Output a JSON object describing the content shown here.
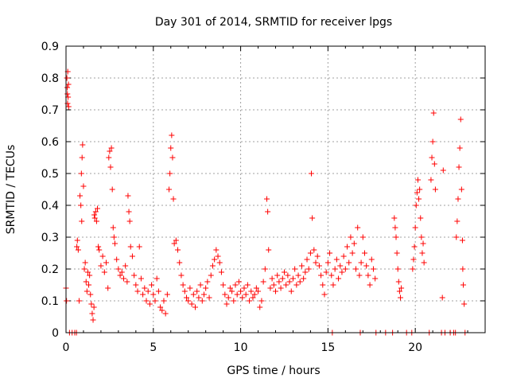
{
  "chart_data": {
    "type": "scatter",
    "title": "Day 301 of 2014, SRMTID for receiver lpgs",
    "xlabel": "GPS time / hours",
    "ylabel": "SRMTID / TECUs",
    "xlim": [
      0,
      24
    ],
    "ylim": [
      0,
      0.9
    ],
    "x_ticks": [
      0,
      5,
      10,
      15,
      20
    ],
    "y_ticks": [
      0,
      0.1,
      0.2,
      0.3,
      0.4,
      0.5,
      0.6,
      0.7,
      0.8,
      0.9
    ],
    "grid": true,
    "legend": "none",
    "marker": "+",
    "colors": {
      "series": "#ff0000",
      "grid": "#a0a0a0",
      "axis": "#000000"
    },
    "series": [
      {
        "name": "SRMTID",
        "points": [
          [
            0.0,
            0.14
          ],
          [
            0.03,
            0.1
          ],
          [
            0.05,
            0.8
          ],
          [
            0.07,
            0.77
          ],
          [
            0.08,
            0.75
          ],
          [
            0.09,
            0.72
          ],
          [
            0.1,
            0.82
          ],
          [
            0.12,
            0.74
          ],
          [
            0.14,
            0.78
          ],
          [
            0.15,
            0.71
          ],
          [
            0.2,
            0.0
          ],
          [
            0.35,
            0.0
          ],
          [
            0.5,
            0.0
          ],
          [
            0.6,
            0.0
          ],
          [
            0.62,
            0.27
          ],
          [
            0.65,
            0.29
          ],
          [
            0.7,
            0.26
          ],
          [
            0.75,
            0.1
          ],
          [
            0.8,
            0.43
          ],
          [
            0.85,
            0.4
          ],
          [
            0.88,
            0.5
          ],
          [
            0.9,
            0.35
          ],
          [
            0.92,
            0.55
          ],
          [
            0.95,
            0.59
          ],
          [
            1.0,
            0.46
          ],
          [
            1.05,
            0.2
          ],
          [
            1.1,
            0.22
          ],
          [
            1.15,
            0.16
          ],
          [
            1.2,
            0.13
          ],
          [
            1.25,
            0.19
          ],
          [
            1.3,
            0.15
          ],
          [
            1.35,
            0.18
          ],
          [
            1.4,
            0.12
          ],
          [
            1.45,
            0.09
          ],
          [
            1.5,
            0.06
          ],
          [
            1.55,
            0.04
          ],
          [
            1.6,
            0.08
          ],
          [
            1.62,
            0.37
          ],
          [
            1.65,
            0.36
          ],
          [
            1.7,
            0.38
          ],
          [
            1.75,
            0.35
          ],
          [
            1.8,
            0.39
          ],
          [
            1.85,
            0.27
          ],
          [
            1.9,
            0.26
          ],
          [
            2.0,
            0.21
          ],
          [
            2.1,
            0.24
          ],
          [
            2.2,
            0.19
          ],
          [
            2.3,
            0.22
          ],
          [
            2.4,
            0.14
          ],
          [
            2.45,
            0.55
          ],
          [
            2.5,
            0.57
          ],
          [
            2.55,
            0.52
          ],
          [
            2.6,
            0.58
          ],
          [
            2.65,
            0.45
          ],
          [
            2.7,
            0.33
          ],
          [
            2.75,
            0.3
          ],
          [
            2.8,
            0.28
          ],
          [
            2.9,
            0.23
          ],
          [
            3.0,
            0.2
          ],
          [
            3.1,
            0.18
          ],
          [
            3.2,
            0.19
          ],
          [
            3.3,
            0.17
          ],
          [
            3.4,
            0.21
          ],
          [
            3.5,
            0.16
          ],
          [
            3.55,
            0.43
          ],
          [
            3.6,
            0.38
          ],
          [
            3.65,
            0.35
          ],
          [
            3.7,
            0.27
          ],
          [
            3.8,
            0.24
          ],
          [
            3.9,
            0.18
          ],
          [
            4.0,
            0.15
          ],
          [
            4.1,
            0.13
          ],
          [
            4.2,
            0.27
          ],
          [
            4.3,
            0.17
          ],
          [
            4.4,
            0.12
          ],
          [
            4.5,
            0.14
          ],
          [
            4.6,
            0.1
          ],
          [
            4.7,
            0.13
          ],
          [
            4.8,
            0.09
          ],
          [
            4.9,
            0.15
          ],
          [
            5.0,
            0.12
          ],
          [
            5.1,
            0.1
          ],
          [
            5.2,
            0.17
          ],
          [
            5.3,
            0.13
          ],
          [
            5.4,
            0.08
          ],
          [
            5.5,
            0.07
          ],
          [
            5.6,
            0.1
          ],
          [
            5.7,
            0.06
          ],
          [
            5.8,
            0.12
          ],
          [
            5.9,
            0.45
          ],
          [
            5.95,
            0.5
          ],
          [
            6.0,
            0.58
          ],
          [
            6.05,
            0.62
          ],
          [
            6.1,
            0.55
          ],
          [
            6.15,
            0.42
          ],
          [
            6.2,
            0.28
          ],
          [
            6.3,
            0.29
          ],
          [
            6.4,
            0.26
          ],
          [
            6.5,
            0.22
          ],
          [
            6.6,
            0.18
          ],
          [
            6.7,
            0.15
          ],
          [
            6.8,
            0.13
          ],
          [
            6.9,
            0.11
          ],
          [
            7.0,
            0.1
          ],
          [
            7.1,
            0.14
          ],
          [
            7.2,
            0.09
          ],
          [
            7.3,
            0.12
          ],
          [
            7.4,
            0.08
          ],
          [
            7.5,
            0.13
          ],
          [
            7.6,
            0.11
          ],
          [
            7.7,
            0.15
          ],
          [
            7.8,
            0.1
          ],
          [
            7.9,
            0.12
          ],
          [
            8.0,
            0.14
          ],
          [
            8.1,
            0.16
          ],
          [
            8.2,
            0.11
          ],
          [
            8.3,
            0.18
          ],
          [
            8.4,
            0.21
          ],
          [
            8.5,
            0.23
          ],
          [
            8.6,
            0.26
          ],
          [
            8.7,
            0.24
          ],
          [
            8.8,
            0.22
          ],
          [
            8.9,
            0.19
          ],
          [
            9.0,
            0.15
          ],
          [
            9.1,
            0.12
          ],
          [
            9.2,
            0.09
          ],
          [
            9.3,
            0.11
          ],
          [
            9.4,
            0.14
          ],
          [
            9.5,
            0.13
          ],
          [
            9.6,
            0.1
          ],
          [
            9.7,
            0.15
          ],
          [
            9.8,
            0.12
          ],
          [
            9.9,
            0.16
          ],
          [
            10.0,
            0.13
          ],
          [
            10.1,
            0.11
          ],
          [
            10.2,
            0.14
          ],
          [
            10.3,
            0.12
          ],
          [
            10.4,
            0.15
          ],
          [
            10.5,
            0.1
          ],
          [
            10.6,
            0.13
          ],
          [
            10.7,
            0.11
          ],
          [
            10.8,
            0.12
          ],
          [
            10.9,
            0.14
          ],
          [
            11.0,
            0.13
          ],
          [
            11.1,
            0.08
          ],
          [
            11.2,
            0.1
          ],
          [
            11.3,
            0.16
          ],
          [
            11.4,
            0.2
          ],
          [
            11.5,
            0.42
          ],
          [
            11.55,
            0.38
          ],
          [
            11.6,
            0.26
          ],
          [
            11.7,
            0.14
          ],
          [
            11.8,
            0.17
          ],
          [
            11.9,
            0.15
          ],
          [
            12.0,
            0.13
          ],
          [
            12.1,
            0.18
          ],
          [
            12.2,
            0.16
          ],
          [
            12.3,
            0.14
          ],
          [
            12.4,
            0.17
          ],
          [
            12.5,
            0.19
          ],
          [
            12.6,
            0.15
          ],
          [
            12.7,
            0.18
          ],
          [
            12.8,
            0.16
          ],
          [
            12.9,
            0.13
          ],
          [
            13.0,
            0.17
          ],
          [
            13.1,
            0.2
          ],
          [
            13.2,
            0.15
          ],
          [
            13.3,
            0.18
          ],
          [
            13.4,
            0.16
          ],
          [
            13.5,
            0.21
          ],
          [
            13.6,
            0.17
          ],
          [
            13.7,
            0.19
          ],
          [
            13.8,
            0.23
          ],
          [
            13.9,
            0.2
          ],
          [
            14.0,
            0.25
          ],
          [
            14.05,
            0.5
          ],
          [
            14.1,
            0.36
          ],
          [
            14.2,
            0.26
          ],
          [
            14.3,
            0.22
          ],
          [
            14.4,
            0.24
          ],
          [
            14.5,
            0.21
          ],
          [
            14.6,
            0.18
          ],
          [
            14.7,
            0.15
          ],
          [
            14.8,
            0.12
          ],
          [
            14.9,
            0.19
          ],
          [
            15.0,
            0.22
          ],
          [
            15.1,
            0.25
          ],
          [
            15.2,
            0.18
          ],
          [
            15.25,
            0.0
          ],
          [
            15.3,
            0.15
          ],
          [
            15.4,
            0.2
          ],
          [
            15.5,
            0.23
          ],
          [
            15.6,
            0.17
          ],
          [
            15.7,
            0.21
          ],
          [
            15.8,
            0.19
          ],
          [
            15.9,
            0.24
          ],
          [
            16.0,
            0.2
          ],
          [
            16.1,
            0.27
          ],
          [
            16.2,
            0.22
          ],
          [
            16.3,
            0.3
          ],
          [
            16.4,
            0.25
          ],
          [
            16.5,
            0.28
          ],
          [
            16.6,
            0.2
          ],
          [
            16.7,
            0.33
          ],
          [
            16.8,
            0.18
          ],
          [
            16.85,
            0.0
          ],
          [
            16.9,
            0.22
          ],
          [
            17.0,
            0.3
          ],
          [
            17.1,
            0.25
          ],
          [
            17.2,
            0.21
          ],
          [
            17.3,
            0.18
          ],
          [
            17.4,
            0.15
          ],
          [
            17.5,
            0.23
          ],
          [
            17.6,
            0.2
          ],
          [
            17.7,
            0.17
          ],
          [
            17.75,
            0.0
          ],
          [
            18.3,
            0.0
          ],
          [
            18.7,
            0.0
          ],
          [
            18.8,
            0.36
          ],
          [
            18.85,
            0.33
          ],
          [
            18.9,
            0.3
          ],
          [
            18.95,
            0.25
          ],
          [
            19.0,
            0.2
          ],
          [
            19.05,
            0.16
          ],
          [
            19.1,
            0.13
          ],
          [
            19.15,
            0.11
          ],
          [
            19.2,
            0.14
          ],
          [
            19.5,
            0.0
          ],
          [
            19.8,
            0.0
          ],
          [
            19.85,
            0.2
          ],
          [
            19.9,
            0.23
          ],
          [
            19.95,
            0.27
          ],
          [
            20.0,
            0.33
          ],
          [
            20.05,
            0.4
          ],
          [
            20.1,
            0.44
          ],
          [
            20.15,
            0.48
          ],
          [
            20.2,
            0.42
          ],
          [
            20.25,
            0.45
          ],
          [
            20.3,
            0.36
          ],
          [
            20.35,
            0.3
          ],
          [
            20.4,
            0.25
          ],
          [
            20.45,
            0.28
          ],
          [
            20.5,
            0.22
          ],
          [
            20.8,
            0.0
          ],
          [
            20.9,
            0.48
          ],
          [
            20.95,
            0.55
          ],
          [
            21.0,
            0.6
          ],
          [
            21.05,
            0.69
          ],
          [
            21.1,
            0.53
          ],
          [
            21.15,
            0.45
          ],
          [
            21.5,
            0.0
          ],
          [
            21.55,
            0.11
          ],
          [
            21.6,
            0.51
          ],
          [
            21.7,
            0.0
          ],
          [
            22.0,
            0.0
          ],
          [
            22.2,
            0.0
          ],
          [
            22.3,
            0.0
          ],
          [
            22.35,
            0.3
          ],
          [
            22.4,
            0.35
          ],
          [
            22.45,
            0.42
          ],
          [
            22.5,
            0.52
          ],
          [
            22.55,
            0.58
          ],
          [
            22.6,
            0.67
          ],
          [
            22.65,
            0.45
          ],
          [
            22.7,
            0.29
          ],
          [
            22.72,
            0.2
          ],
          [
            22.75,
            0.15
          ],
          [
            22.8,
            0.09
          ],
          [
            22.85,
            0.0
          ]
        ]
      }
    ]
  }
}
